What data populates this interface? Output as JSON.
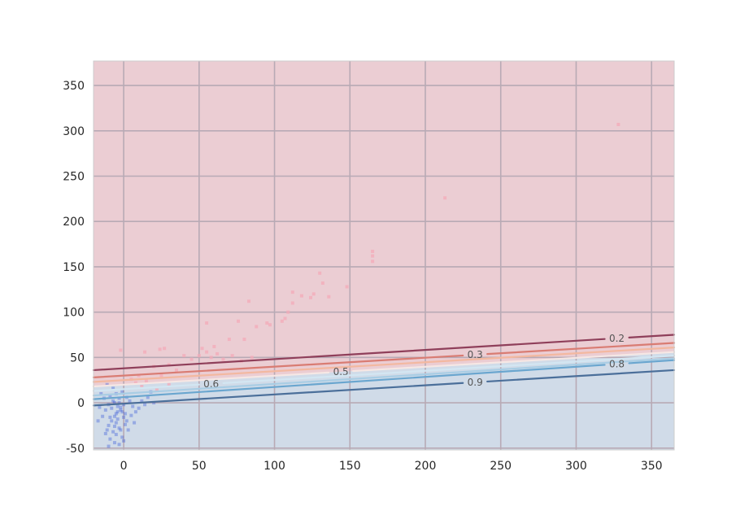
{
  "chart_data": {
    "type": "scatter",
    "title": "",
    "xlabel": "",
    "ylabel": "",
    "xlim": [
      -20,
      365
    ],
    "ylim": [
      -52,
      377
    ],
    "grid": true,
    "x_ticks": [
      0,
      50,
      100,
      150,
      200,
      250,
      300,
      350
    ],
    "y_ticks": [
      -50,
      0,
      50,
      100,
      150,
      200,
      250,
      300,
      350
    ],
    "regions": [
      {
        "class": "upper",
        "color": "#ebcdd3"
      },
      {
        "class": "lower",
        "color": "#d0dbe8"
      }
    ],
    "contours": [
      {
        "level": "0.2",
        "color": "#8f3f5a",
        "y_start": 36,
        "y_end": 75,
        "label_x": 327
      },
      {
        "level": "0.3",
        "color": "#d97c73",
        "y_start": 28,
        "y_end": 66,
        "label_x": 233
      },
      {
        "level": "0.4",
        "color": "#f3b8a0",
        "y_start": 23,
        "y_end": 61,
        "label_x": null
      },
      {
        "level": "0.5",
        "color": "#f6e7e4",
        "y_start": 18,
        "y_end": 56,
        "label_x": 144
      },
      {
        "level": "0.6",
        "color": "#d3e6f2",
        "y_start": 13,
        "y_end": 52,
        "label_x": 58
      },
      {
        "level": "0.7",
        "color": "#a9cde4",
        "y_start": 8,
        "y_end": 49,
        "label_x": null
      },
      {
        "level": "0.8",
        "color": "#6aa6cf",
        "y_start": 4,
        "y_end": 47,
        "label_x": 327
      },
      {
        "level": "0.9",
        "color": "#4b6f9a",
        "y_start": -3,
        "y_end": 36,
        "label_x": 233
      }
    ],
    "series": [
      {
        "color": "#f4a9b8",
        "points": [
          [
            -2,
            58
          ],
          [
            24,
            59
          ],
          [
            27,
            60
          ],
          [
            14,
            56
          ],
          [
            55,
            88
          ],
          [
            60,
            62
          ],
          [
            70,
            70
          ],
          [
            76,
            90
          ],
          [
            80,
            70
          ],
          [
            83,
            112
          ],
          [
            88,
            84
          ],
          [
            95,
            88
          ],
          [
            97,
            86
          ],
          [
            105,
            90
          ],
          [
            107,
            93
          ],
          [
            109,
            100
          ],
          [
            112,
            110
          ],
          [
            112,
            122
          ],
          [
            118,
            118
          ],
          [
            124,
            116
          ],
          [
            126,
            120
          ],
          [
            130,
            143
          ],
          [
            132,
            132
          ],
          [
            136,
            117
          ],
          [
            148,
            128
          ],
          [
            165,
            167
          ],
          [
            165,
            162
          ],
          [
            165,
            156
          ],
          [
            213,
            226
          ],
          [
            328,
            307
          ],
          [
            40,
            52
          ],
          [
            45,
            48
          ],
          [
            50,
            52
          ],
          [
            52,
            60
          ],
          [
            55,
            56
          ],
          [
            58,
            50
          ],
          [
            62,
            54
          ],
          [
            66,
            48
          ],
          [
            72,
            52
          ],
          [
            78,
            46
          ],
          [
            85,
            50
          ],
          [
            30,
            42
          ],
          [
            35,
            36
          ],
          [
            20,
            40
          ],
          [
            25,
            30
          ],
          [
            10,
            30
          ],
          [
            8,
            22
          ],
          [
            5,
            26
          ],
          [
            15,
            24
          ],
          [
            22,
            14
          ],
          [
            30,
            20
          ],
          [
            12,
            18
          ]
        ]
      },
      {
        "color": "#2f4fd6",
        "points": [
          [
            -5,
            10
          ],
          [
            -3,
            5
          ],
          [
            -2,
            -5
          ],
          [
            -4,
            -10
          ],
          [
            -6,
            -15
          ],
          [
            -8,
            -20
          ],
          [
            -10,
            -25
          ],
          [
            -12,
            -8
          ],
          [
            -7,
            2
          ],
          [
            -1,
            12
          ],
          [
            0,
            -2
          ],
          [
            1,
            -12
          ],
          [
            2,
            -20
          ],
          [
            -3,
            -28
          ],
          [
            -5,
            -35
          ],
          [
            -9,
            -40
          ],
          [
            -11,
            -30
          ],
          [
            -14,
            -15
          ],
          [
            -16,
            -5
          ],
          [
            -13,
            5
          ],
          [
            -9,
            8
          ],
          [
            -6,
            0
          ],
          [
            -4,
            -4
          ],
          [
            -2,
            -8
          ],
          [
            0,
            -16
          ],
          [
            1,
            -24
          ],
          [
            3,
            -30
          ],
          [
            -1,
            -38
          ],
          [
            -6,
            -44
          ],
          [
            -10,
            -48
          ],
          [
            2,
            6
          ],
          [
            4,
            2
          ],
          [
            6,
            -4
          ],
          [
            8,
            -10
          ],
          [
            10,
            -6
          ],
          [
            12,
            2
          ],
          [
            14,
            -2
          ],
          [
            16,
            6
          ],
          [
            18,
            12
          ],
          [
            20,
            0
          ],
          [
            -7,
            16
          ],
          [
            -11,
            20
          ],
          [
            -15,
            10
          ],
          [
            -17,
            -20
          ],
          [
            -12,
            -34
          ],
          [
            -3,
            -46
          ],
          [
            0,
            -42
          ],
          [
            -5,
            -22
          ],
          [
            -8,
            -6
          ],
          [
            -4,
            -18
          ],
          [
            -2,
            -30
          ],
          [
            -6,
            -26
          ],
          [
            -1,
            -10
          ],
          [
            -3,
            0
          ],
          [
            -5,
            -12
          ],
          [
            -9,
            -16
          ],
          [
            -7,
            -32
          ],
          [
            5,
            -14
          ],
          [
            7,
            -22
          ],
          [
            -10,
            -2
          ]
        ]
      }
    ]
  }
}
